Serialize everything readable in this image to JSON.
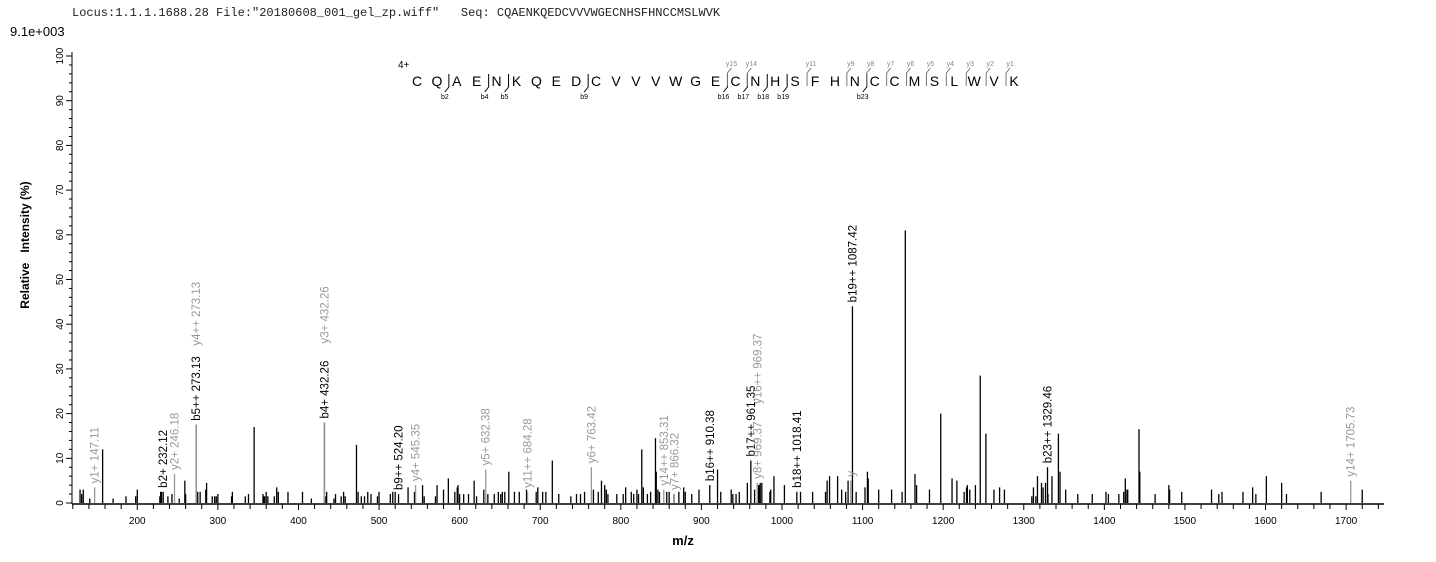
{
  "header": {
    "title": "Locus:1.1.1.1688.28 File:\"20180608_001_gel_zp.wiff\"   Seq: CQAENKQEDCVVVWGECNHSFHNCCMSLWVK",
    "scale_label": "9.1e+003"
  },
  "sequence_map": {
    "charge": "4+",
    "residues": "CQAENKQEDCVVVWGECNHSFHNCCMSLWVK",
    "b_ions": [
      {
        "n": 2,
        "label": "b2"
      },
      {
        "n": 4,
        "label": "b4"
      },
      {
        "n": 5,
        "label": "b5"
      },
      {
        "n": 9,
        "label": "b9"
      },
      {
        "n": 16,
        "label": "b16"
      },
      {
        "n": 17,
        "label": "b17"
      },
      {
        "n": 18,
        "label": "b18"
      },
      {
        "n": 19,
        "label": "b19"
      },
      {
        "n": 23,
        "label": "b23"
      }
    ],
    "y_ions": [
      {
        "n": 15,
        "label": "y15"
      },
      {
        "n": 14,
        "label": "y14"
      },
      {
        "n": 11,
        "label": "y11"
      },
      {
        "n": 9,
        "label": "y9"
      },
      {
        "n": 8,
        "label": "y8"
      },
      {
        "n": 7,
        "label": "y7"
      },
      {
        "n": 6,
        "label": "y6"
      },
      {
        "n": 5,
        "label": "y5"
      },
      {
        "n": 4,
        "label": "y4"
      },
      {
        "n": 3,
        "label": "y3"
      },
      {
        "n": 2,
        "label": "y2"
      },
      {
        "n": 1,
        "label": "y1"
      }
    ]
  },
  "chart_data": {
    "type": "bar",
    "xlabel": "m/z",
    "ylabel": "Relative   Intensity (%)",
    "xlim": [
      119,
      1747
    ],
    "ylim": [
      0,
      100
    ],
    "xticks": [
      200,
      300,
      400,
      500,
      600,
      700,
      800,
      900,
      1000,
      1100,
      1200,
      1300,
      1400,
      1500,
      1600,
      1700
    ],
    "yticks": [
      0,
      10,
      20,
      30,
      40,
      50,
      60,
      70,
      80,
      90,
      100
    ],
    "colors": {
      "b_ion": "#000000",
      "y_ion": "#999999",
      "unassigned": "#000000"
    },
    "annotated_peaks": [
      {
        "mz": 147.11,
        "intensity": 3.5,
        "label": "y1+ 147.11",
        "type": "y"
      },
      {
        "mz": 232.12,
        "intensity": 2.5,
        "label": "b2+ 232.12",
        "type": "b"
      },
      {
        "mz": 246.18,
        "intensity": 6.5,
        "label": "y2+ 246.18",
        "type": "y"
      },
      {
        "mz": 273.13,
        "intensity": 17.5,
        "label": "b5++ 273.13",
        "type": "b"
      },
      {
        "mz": 273.13,
        "intensity": 17.5,
        "label": "y4++ 273.13",
        "type": "y"
      },
      {
        "mz": 432.26,
        "intensity": 18,
        "label": "b4+ 432.26",
        "type": "b"
      },
      {
        "mz": 432.26,
        "intensity": 18,
        "label": "y3+ 432.26",
        "type": "y"
      },
      {
        "mz": 524.2,
        "intensity": 2,
        "label": "b9++ 524.20",
        "type": "b"
      },
      {
        "mz": 545.35,
        "intensity": 4,
        "label": "y4+ 545.35",
        "type": "y"
      },
      {
        "mz": 632.38,
        "intensity": 7.5,
        "label": "y5+ 632.38",
        "type": "y"
      },
      {
        "mz": 684.28,
        "intensity": 2.5,
        "label": "y11++ 684.28",
        "type": "y"
      },
      {
        "mz": 763.42,
        "intensity": 8,
        "label": "y6+ 763.42",
        "type": "y"
      },
      {
        "mz": 853.31,
        "intensity": 3,
        "label": "y14++ 853.31",
        "type": "y"
      },
      {
        "mz": 866.32,
        "intensity": 2,
        "label": "y7+ 866.32",
        "type": "y"
      },
      {
        "mz": 910.38,
        "intensity": 4,
        "label": "b16++ 910.38",
        "type": "b"
      },
      {
        "mz": 961.35,
        "intensity": 9.5,
        "label": "b17++ 961.35",
        "type": "b"
      },
      {
        "mz": 969.37,
        "intensity": 4.5,
        "label": "y8+ 969.37",
        "type": "y"
      },
      {
        "mz": 969.37,
        "intensity": 4.5,
        "label": "y16++ 969.37",
        "type": "y"
      },
      {
        "mz": 1018.41,
        "intensity": 2.5,
        "label": "b18++ 1018.41",
        "type": "b"
      },
      {
        "mz": 1085.4,
        "intensity": 5,
        "label": "y",
        "type": "y"
      },
      {
        "mz": 1087.42,
        "intensity": 44,
        "label": "b19++ 1087.42",
        "type": "b"
      },
      {
        "mz": 1329.46,
        "intensity": 8,
        "label": "b23++ 1329.46",
        "type": "b"
      },
      {
        "mz": 1705.73,
        "intensity": 5,
        "label": "y14+ 1705.73",
        "type": "y"
      }
    ],
    "peaks": [
      [
        129,
        3
      ],
      [
        131,
        2
      ],
      [
        133,
        3
      ],
      [
        141,
        1
      ],
      [
        157,
        12
      ],
      [
        170,
        1
      ],
      [
        186,
        1.5
      ],
      [
        198,
        1.5
      ],
      [
        200,
        3
      ],
      [
        228,
        1.5
      ],
      [
        229,
        2.5
      ],
      [
        230,
        2.5
      ],
      [
        238,
        1.5
      ],
      [
        243,
        2
      ],
      [
        252,
        1
      ],
      [
        259,
        5
      ],
      [
        260,
        2
      ],
      [
        275,
        2.5
      ],
      [
        278,
        2.5
      ],
      [
        285,
        3
      ],
      [
        286,
        4.5
      ],
      [
        293,
        1.5
      ],
      [
        296,
        1.5
      ],
      [
        298,
        1.5
      ],
      [
        300,
        2
      ],
      [
        317,
        1.5
      ],
      [
        318,
        2.5
      ],
      [
        334,
        1.5
      ],
      [
        338,
        2
      ],
      [
        345,
        17
      ],
      [
        356,
        2
      ],
      [
        357,
        1.5
      ],
      [
        358,
        1.5
      ],
      [
        360,
        2.5
      ],
      [
        362,
        1.5
      ],
      [
        370,
        1.5
      ],
      [
        373,
        3.5
      ],
      [
        375,
        2.5
      ],
      [
        387,
        2.5
      ],
      [
        405,
        2.5
      ],
      [
        416,
        1
      ],
      [
        434,
        1.5
      ],
      [
        435,
        2.5
      ],
      [
        444,
        1
      ],
      [
        446,
        2
      ],
      [
        453,
        1.5
      ],
      [
        456,
        2.5
      ],
      [
        458,
        1.5
      ],
      [
        472,
        13
      ],
      [
        474,
        2.5
      ],
      [
        478,
        1.5
      ],
      [
        482,
        1.5
      ],
      [
        486,
        2.5
      ],
      [
        490,
        2
      ],
      [
        498,
        1.5
      ],
      [
        500,
        2.5
      ],
      [
        514,
        2
      ],
      [
        517,
        2.5
      ],
      [
        520,
        2.5
      ],
      [
        536,
        3.5
      ],
      [
        544,
        2.5
      ],
      [
        554,
        4
      ],
      [
        556,
        1.5
      ],
      [
        570,
        1.5
      ],
      [
        572,
        4
      ],
      [
        580,
        3
      ],
      [
        586,
        5.5
      ],
      [
        594,
        2.5
      ],
      [
        597,
        3.5
      ],
      [
        598,
        4
      ],
      [
        600,
        2
      ],
      [
        605,
        2
      ],
      [
        611,
        2
      ],
      [
        618,
        5
      ],
      [
        621,
        1.5
      ],
      [
        630,
        3
      ],
      [
        635,
        2
      ],
      [
        643,
        2
      ],
      [
        648,
        2.5
      ],
      [
        651,
        2
      ],
      [
        653,
        2.5
      ],
      [
        656,
        2.5
      ],
      [
        661,
        7
      ],
      [
        668,
        2.5
      ],
      [
        674,
        2.5
      ],
      [
        683,
        3
      ],
      [
        695,
        2.5
      ],
      [
        697,
        3.5
      ],
      [
        703,
        2.5
      ],
      [
        707,
        2.5
      ],
      [
        715,
        9.5
      ],
      [
        723,
        2
      ],
      [
        738,
        1.5
      ],
      [
        745,
        2
      ],
      [
        750,
        2
      ],
      [
        755,
        2.5
      ],
      [
        766,
        3
      ],
      [
        772,
        2.5
      ],
      [
        776,
        5
      ],
      [
        780,
        4
      ],
      [
        782,
        3
      ],
      [
        784,
        2
      ],
      [
        795,
        2
      ],
      [
        803,
        2
      ],
      [
        806,
        3.5
      ],
      [
        813,
        2.5
      ],
      [
        816,
        2
      ],
      [
        820,
        3
      ],
      [
        822,
        2
      ],
      [
        826,
        12
      ],
      [
        828,
        3.5
      ],
      [
        833,
        2
      ],
      [
        837,
        2.5
      ],
      [
        843,
        14.5
      ],
      [
        844,
        7
      ],
      [
        846,
        3
      ],
      [
        848,
        2.5
      ],
      [
        857,
        2.5
      ],
      [
        860,
        2.5
      ],
      [
        866,
        2
      ],
      [
        872,
        2.5
      ],
      [
        878,
        3.5
      ],
      [
        880,
        2.5
      ],
      [
        888,
        2
      ],
      [
        897,
        3
      ],
      [
        920,
        7.5
      ],
      [
        924,
        2.5
      ],
      [
        937,
        3
      ],
      [
        939,
        2
      ],
      [
        943,
        2
      ],
      [
        947,
        2.5
      ],
      [
        957,
        4.5
      ],
      [
        966,
        3
      ],
      [
        971,
        4
      ],
      [
        972,
        4
      ],
      [
        973,
        4.5
      ],
      [
        975,
        4.5
      ],
      [
        985,
        2.5
      ],
      [
        986,
        3
      ],
      [
        990,
        6
      ],
      [
        1003,
        4
      ],
      [
        1023,
        2.5
      ],
      [
        1038,
        2.5
      ],
      [
        1054,
        2.5
      ],
      [
        1056,
        5
      ],
      [
        1059,
        6
      ],
      [
        1069,
        6
      ],
      [
        1074,
        3
      ],
      [
        1079,
        2.5
      ],
      [
        1082,
        5
      ],
      [
        1092,
        2.5
      ],
      [
        1103,
        3.5
      ],
      [
        1106,
        7
      ],
      [
        1107,
        5.5
      ],
      [
        1120,
        3
      ],
      [
        1136,
        3
      ],
      [
        1149,
        2.5
      ],
      [
        1153,
        61
      ],
      [
        1165,
        6.5
      ],
      [
        1167,
        4
      ],
      [
        1183,
        3
      ],
      [
        1197,
        20
      ],
      [
        1211,
        5.5
      ],
      [
        1217,
        5
      ],
      [
        1226,
        2.5
      ],
      [
        1229,
        3.5
      ],
      [
        1230,
        4
      ],
      [
        1233,
        3
      ],
      [
        1240,
        4
      ],
      [
        1246,
        28.5
      ],
      [
        1253,
        15.5
      ],
      [
        1263,
        3
      ],
      [
        1270,
        3.5
      ],
      [
        1276,
        3
      ],
      [
        1310,
        1.5
      ],
      [
        1312,
        3.5
      ],
      [
        1315,
        1.5
      ],
      [
        1317,
        6
      ],
      [
        1322,
        4.5
      ],
      [
        1324,
        3.5
      ],
      [
        1327,
        4.5
      ],
      [
        1330,
        2
      ],
      [
        1335,
        6
      ],
      [
        1343,
        15.5
      ],
      [
        1345,
        7
      ],
      [
        1352,
        3
      ],
      [
        1367,
        2
      ],
      [
        1385,
        2
      ],
      [
        1402,
        2.5
      ],
      [
        1405,
        2
      ],
      [
        1418,
        2
      ],
      [
        1424,
        2.5
      ],
      [
        1426,
        5.5
      ],
      [
        1428,
        3
      ],
      [
        1429,
        3
      ],
      [
        1443,
        16.5
      ],
      [
        1444,
        7
      ],
      [
        1463,
        2
      ],
      [
        1480,
        4
      ],
      [
        1481,
        3
      ],
      [
        1496,
        2.5
      ],
      [
        1533,
        3
      ],
      [
        1542,
        2
      ],
      [
        1546,
        2.5
      ],
      [
        1572,
        2.5
      ],
      [
        1584,
        3.5
      ],
      [
        1588,
        2
      ],
      [
        1601,
        6
      ],
      [
        1620,
        4.5
      ],
      [
        1626,
        2
      ],
      [
        1669,
        2.5
      ],
      [
        1720,
        3
      ]
    ]
  }
}
